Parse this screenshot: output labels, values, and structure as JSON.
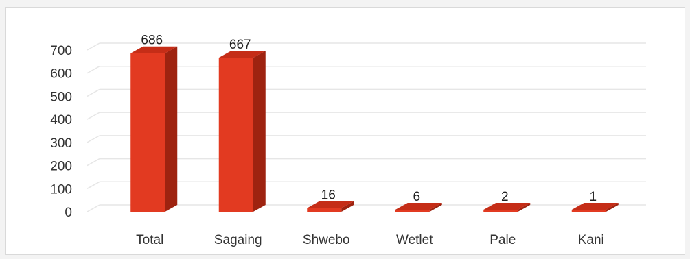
{
  "chart_data": {
    "type": "bar",
    "categories": [
      "Total",
      "Sagaing",
      "Shwebo",
      "Wetlet",
      "Pale",
      "Kani"
    ],
    "values": [
      686,
      667,
      16,
      6,
      2,
      1
    ],
    "data_labels": [
      "686",
      "667",
      "16",
      "6",
      "2",
      "1"
    ],
    "title": "",
    "xlabel": "",
    "ylabel": "",
    "ylim": [
      0,
      700
    ],
    "yticks": [
      0,
      100,
      200,
      300,
      400,
      500,
      600,
      700
    ],
    "grid": true,
    "legend": "none",
    "style": "3d-column"
  },
  "colors": {
    "bar_front": "#e23a21",
    "bar_side": "#9e2310",
    "bar_top": "#c52d17",
    "grid": "#e6e6e6",
    "floor": "#f0f0f0"
  }
}
